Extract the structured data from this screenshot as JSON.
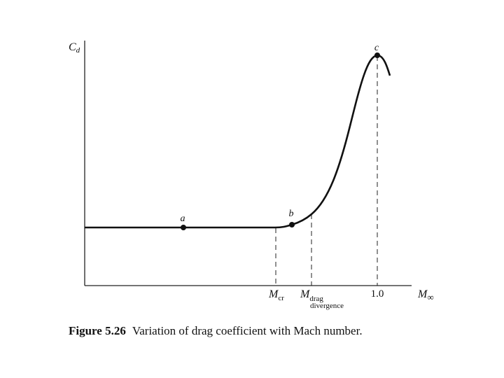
{
  "y_axis_label": {
    "main": "C",
    "sub": "d"
  },
  "x_axis_label": {
    "main": "M",
    "sub": "∞"
  },
  "points": [
    {
      "label": "a"
    },
    {
      "label": "b"
    },
    {
      "label": "c"
    }
  ],
  "x_markers": [
    {
      "main": "M",
      "sub": "cr"
    },
    {
      "main": "M",
      "sub": "drag",
      "sub2": "divergence"
    },
    {
      "main": "1.0"
    }
  ],
  "caption": {
    "number": "Figure 5.26",
    "text": "Variation of drag coefficient with Mach number."
  }
}
